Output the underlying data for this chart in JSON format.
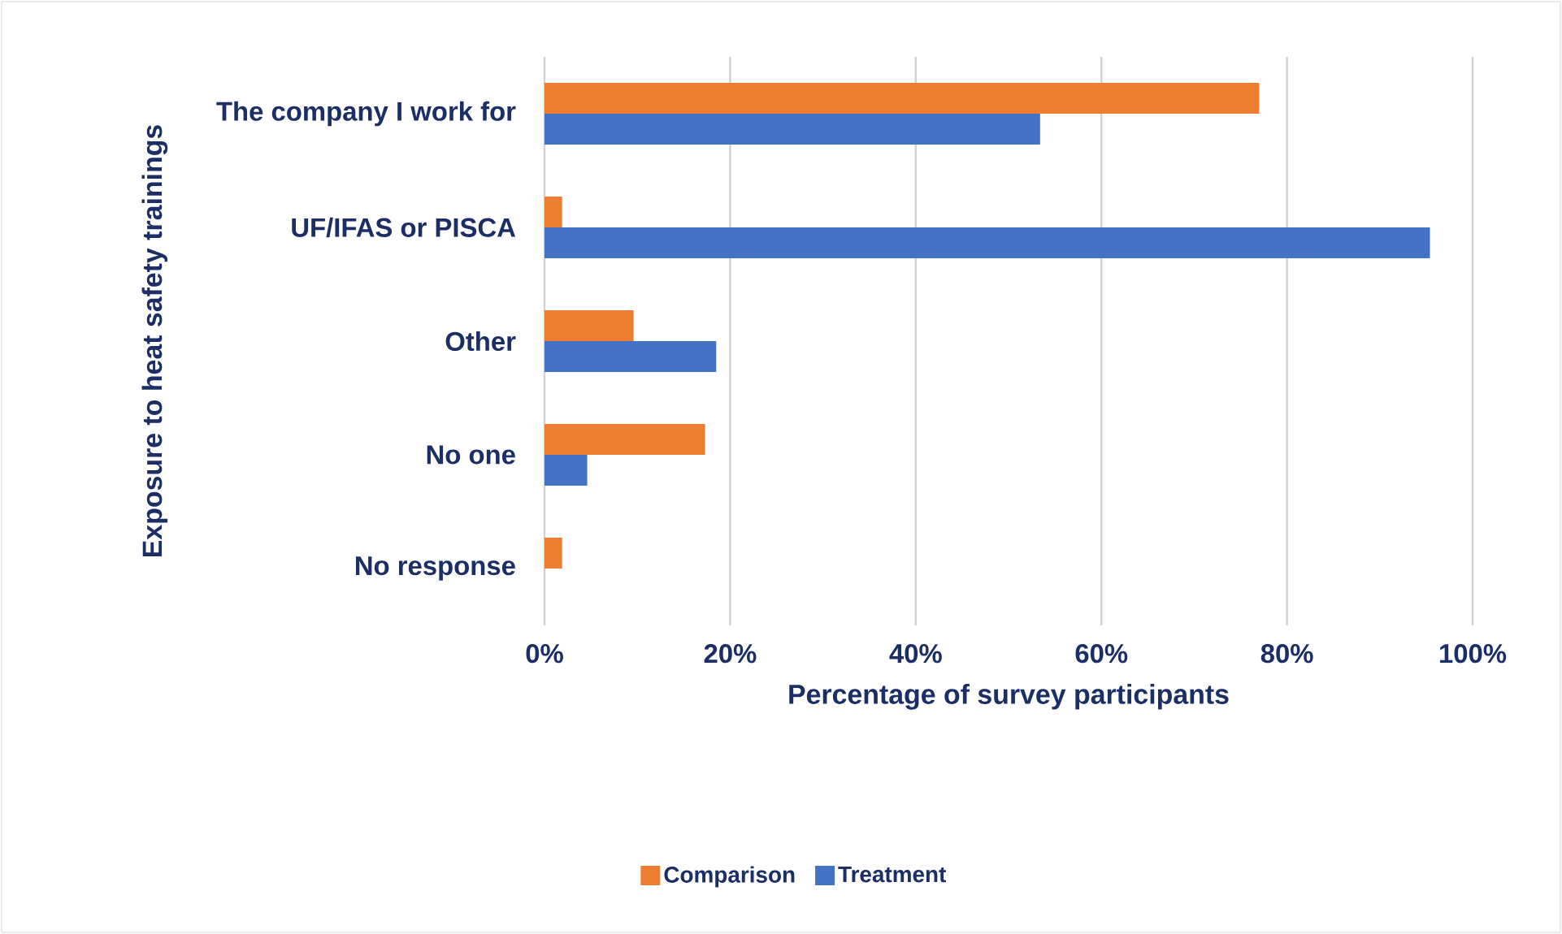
{
  "chart_data": {
    "type": "bar",
    "orientation": "horizontal",
    "xlabel": "Percentage of survey participants",
    "ylabel": "Exposure to heat safety trainings",
    "categories": [
      "The company I work for",
      "UF/IFAS or PISCA",
      "Other",
      "No one",
      "No response"
    ],
    "series": [
      {
        "name": "Comparison",
        "color": "#ed7d31",
        "values": [
          77,
          1.9,
          9.6,
          17.3,
          1.9
        ]
      },
      {
        "name": "Treatment",
        "color": "#4472c4",
        "values": [
          53.4,
          95.4,
          18.5,
          4.6,
          0
        ]
      }
    ],
    "xlim": [
      0,
      100
    ],
    "xticks": [
      {
        "value": 0,
        "label": "0%"
      },
      {
        "value": 20,
        "label": "20%"
      },
      {
        "value": 40,
        "label": "40%"
      },
      {
        "value": 60,
        "label": "60%"
      },
      {
        "value": 80,
        "label": "80%"
      },
      {
        "value": 100,
        "label": "100%"
      }
    ],
    "grid": "x",
    "legend": "bottom"
  }
}
